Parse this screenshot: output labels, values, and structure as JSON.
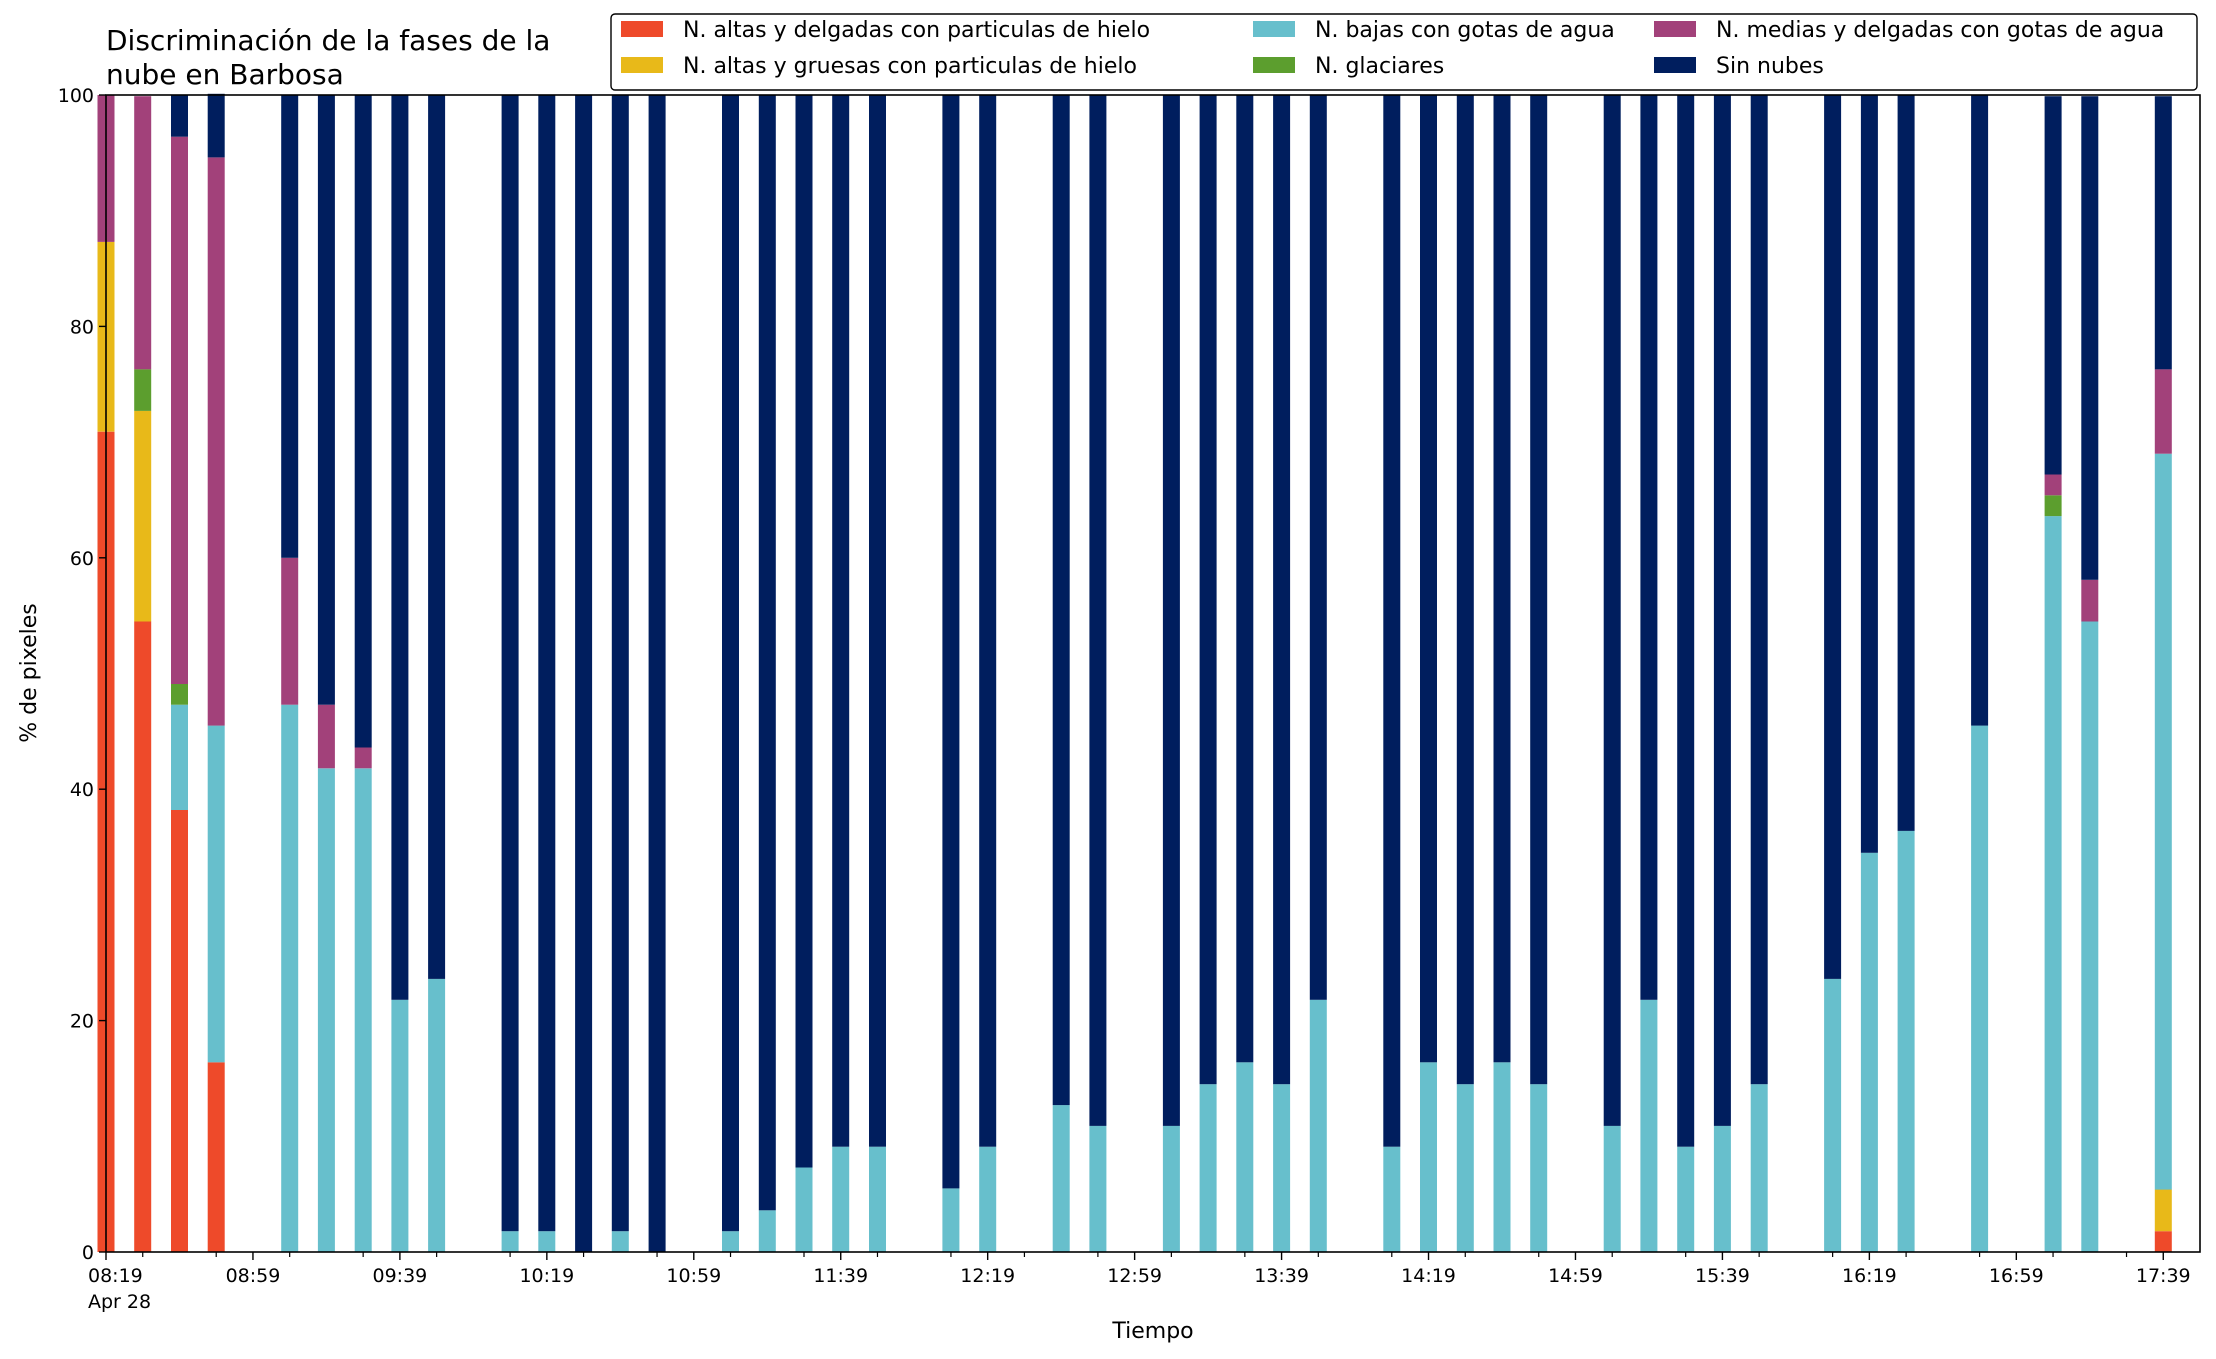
{
  "chart_data": {
    "type": "bar",
    "stacked": true,
    "title_line1": "Discriminación de la fases de la",
    "title_line2": "nube en Barbosa",
    "xlabel": "Tiempo",
    "ylabel": "% de pixeles",
    "ylim": [
      0,
      100
    ],
    "yticks": [
      0,
      20,
      40,
      60,
      80,
      100
    ],
    "grid": false,
    "legend_position": "top-right",
    "colors": {
      "red": "#ee4a2a",
      "yellow": "#e8b919",
      "cyan": "#67bfcc",
      "green": "#5c9e2e",
      "magenta": "#a2417a",
      "navy": "#001e5e"
    },
    "legend": [
      {
        "label": "N. altas y delgadas con particulas de hielo",
        "color": "#ee4a2a"
      },
      {
        "label": "N. altas y gruesas con particulas de hielo",
        "color": "#e8b919"
      },
      {
        "label": "N. bajas con gotas de agua",
        "color": "#67bfcc"
      },
      {
        "label": "N. glaciares",
        "color": "#5c9e2e"
      },
      {
        "label": "N. medias y delgadas con gotas de agua",
        "color": "#a2417a"
      },
      {
        "label": "Sin nubes",
        "color": "#001e5e"
      }
    ],
    "x_tick_labels": [
      "08:19",
      "08:59",
      "09:39",
      "10:19",
      "10:59",
      "11:39",
      "12:19",
      "12:59",
      "13:39",
      "14:19",
      "14:59",
      "15:39",
      "16:19",
      "16:59",
      "17:39"
    ],
    "x_tick_sublabel": "Apr 28",
    "series_order": [
      "N. altas y delgadas con particulas de hielo",
      "N. altas y gruesas con particulas de hielo",
      "N. bajas con gotas de agua",
      "N. glaciares",
      "N. medias y delgadas con gotas de agua",
      "Sin nubes"
    ],
    "x": [
      "08:19",
      "08:29",
      "08:39",
      "08:49",
      "09:09",
      "09:19",
      "09:29",
      "09:39",
      "09:49",
      "10:09",
      "10:19",
      "10:29",
      "10:39",
      "10:49",
      "11:09",
      "11:19",
      "11:29",
      "11:39",
      "11:49",
      "12:09",
      "12:19",
      "12:39",
      "12:49",
      "13:09",
      "13:19",
      "13:29",
      "13:39",
      "13:49",
      "14:09",
      "14:19",
      "14:29",
      "14:39",
      "14:49",
      "15:09",
      "15:19",
      "15:29",
      "15:39",
      "15:49",
      "16:09",
      "16:19",
      "16:29",
      "16:49",
      "17:09",
      "17:19",
      "17:39"
    ],
    "series": [
      {
        "name": "N. altas y delgadas con particulas de hielo",
        "values": [
          70.9,
          54.5,
          38.2,
          16.4,
          0,
          0,
          0,
          0,
          0,
          0,
          0,
          0,
          0,
          0,
          0,
          0,
          0,
          0,
          0,
          0,
          0,
          0,
          0,
          0,
          0,
          0,
          0,
          0,
          0,
          0,
          0,
          0,
          0,
          0,
          0,
          0,
          0,
          0,
          0,
          0,
          0,
          0,
          0,
          0,
          1.8
        ]
      },
      {
        "name": "N. altas y gruesas con particulas de hielo",
        "values": [
          16.4,
          18.2,
          0,
          0,
          0,
          0,
          0,
          0,
          0,
          0,
          0,
          0,
          0,
          0,
          0,
          0,
          0,
          0,
          0,
          0,
          0,
          0,
          0,
          0,
          0,
          0,
          0,
          0,
          0,
          0,
          0,
          0,
          0,
          0,
          0,
          0,
          0,
          0,
          0,
          0,
          0,
          0,
          0,
          0,
          3.6
        ]
      },
      {
        "name": "N. bajas con gotas de agua",
        "values": [
          0,
          0,
          9.1,
          29.1,
          47.3,
          41.8,
          41.8,
          21.8,
          23.6,
          1.8,
          1.8,
          0,
          1.8,
          0,
          1.8,
          3.6,
          7.3,
          9.1,
          9.1,
          5.5,
          9.1,
          12.7,
          10.9,
          10.9,
          14.5,
          16.4,
          14.5,
          21.8,
          9.1,
          16.4,
          14.5,
          16.4,
          14.5,
          10.9,
          21.8,
          9.1,
          10.9,
          14.5,
          23.6,
          34.5,
          36.4,
          45.5,
          63.6,
          54.5,
          63.6
        ]
      },
      {
        "name": "N. glaciares",
        "values": [
          0,
          3.6,
          1.8,
          0,
          0,
          0,
          0,
          0,
          0,
          0,
          0,
          0,
          0,
          0,
          0,
          0,
          0,
          0,
          0,
          0,
          0,
          0,
          0,
          0,
          0,
          0,
          0,
          0,
          0,
          0,
          0,
          0,
          0,
          0,
          0,
          0,
          0,
          0,
          0,
          0,
          0,
          0,
          1.8,
          0,
          0
        ]
      },
      {
        "name": "N. medias y delgadas con gotas de agua",
        "values": [
          12.7,
          23.6,
          47.3,
          49.1,
          12.7,
          5.5,
          1.8,
          0,
          0,
          0,
          0,
          0,
          0,
          0,
          0,
          0,
          0,
          0,
          0,
          0,
          0,
          0,
          0,
          0,
          0,
          0,
          0,
          0,
          0,
          0,
          0,
          0,
          0,
          0,
          0,
          0,
          0,
          0,
          0,
          0,
          0,
          0,
          1.8,
          3.6,
          7.3
        ]
      },
      {
        "name": "Sin nubes",
        "values": [
          0,
          0,
          3.6,
          5.5,
          40.0,
          52.7,
          56.4,
          78.2,
          76.4,
          98.2,
          98.2,
          100,
          98.2,
          100,
          98.2,
          96.4,
          92.7,
          90.9,
          90.9,
          94.5,
          90.9,
          87.3,
          89.1,
          89.1,
          85.5,
          83.6,
          85.5,
          78.2,
          90.9,
          83.6,
          85.5,
          83.6,
          85.5,
          89.1,
          78.2,
          90.9,
          89.1,
          85.5,
          76.4,
          65.5,
          63.6,
          54.5,
          32.7,
          41.8,
          23.6
        ]
      }
    ]
  }
}
